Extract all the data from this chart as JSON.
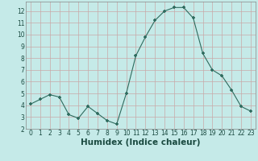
{
  "x": [
    0,
    1,
    2,
    3,
    4,
    5,
    6,
    7,
    8,
    9,
    10,
    11,
    12,
    13,
    14,
    15,
    16,
    17,
    18,
    19,
    20,
    21,
    22,
    23
  ],
  "y": [
    4.1,
    4.5,
    4.9,
    4.7,
    3.2,
    2.9,
    3.9,
    3.3,
    2.7,
    2.4,
    5.0,
    8.2,
    9.8,
    11.2,
    12.0,
    12.3,
    12.3,
    11.4,
    8.4,
    7.0,
    6.5,
    5.3,
    3.9,
    3.5
  ],
  "xlabel": "Humidex (Indice chaleur)",
  "bg_color": "#c5eae8",
  "grid_color": "#c8a8a8",
  "line_color": "#2e6b5e",
  "marker_color": "#2e6b5e",
  "xlim": [
    -0.5,
    23.5
  ],
  "ylim": [
    2,
    12.8
  ],
  "yticks": [
    2,
    3,
    4,
    5,
    6,
    7,
    8,
    9,
    10,
    11,
    12
  ],
  "xticks": [
    0,
    1,
    2,
    3,
    4,
    5,
    6,
    7,
    8,
    9,
    10,
    11,
    12,
    13,
    14,
    15,
    16,
    17,
    18,
    19,
    20,
    21,
    22,
    23
  ],
  "tick_fontsize": 5.5,
  "xlabel_fontsize": 7.5
}
